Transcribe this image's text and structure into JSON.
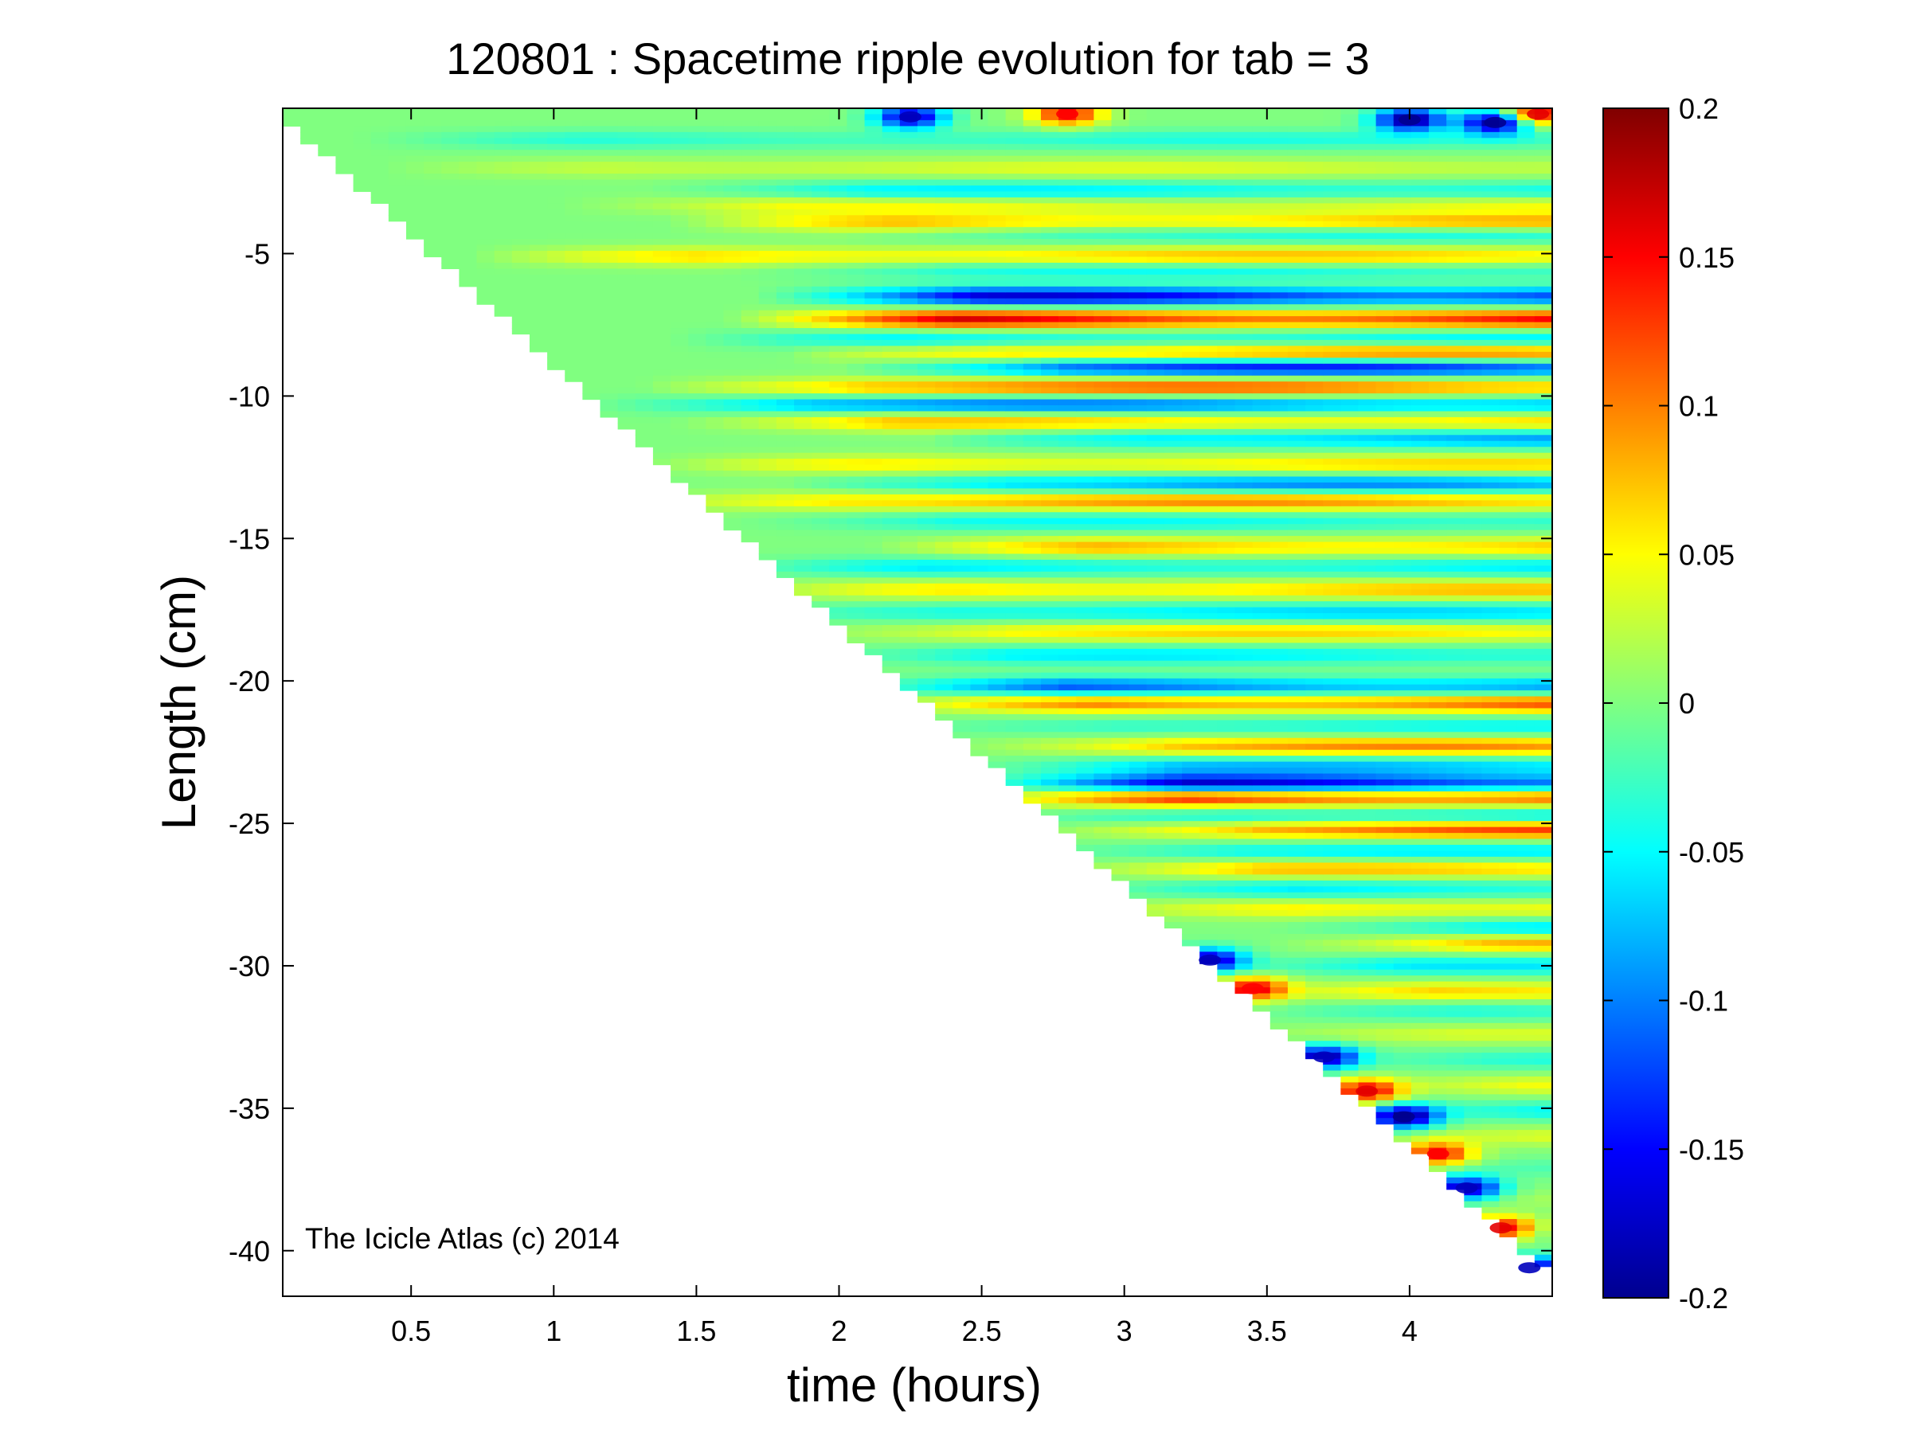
{
  "figure": {
    "title": "120801 : Spacetime ripple evolution for tab = 3",
    "watermark": "The Icicle Atlas (c) 2014"
  },
  "chart_data": {
    "type": "heatmap",
    "title": "120801 : Spacetime ripple evolution for tab = 3",
    "xlabel": "time (hours)",
    "ylabel": "Length (cm)",
    "xlim": [
      0.05,
      4.5
    ],
    "ylim": [
      -41.6,
      0.1
    ],
    "xticks": [
      0.5,
      1,
      1.5,
      2,
      2.5,
      3,
      3.5,
      4
    ],
    "xtick_labels": [
      "0.5",
      "1",
      "1.5",
      "2",
      "2.5",
      "3",
      "3.5",
      "4"
    ],
    "yticks": [
      -5,
      -10,
      -15,
      -20,
      -25,
      -30,
      -35,
      -40
    ],
    "ytick_labels": [
      "-5",
      "-10",
      "-15",
      "-20",
      "-25",
      "-30",
      "-35",
      "-40"
    ],
    "grid": false,
    "colormap": "jet",
    "colorbar": {
      "clim": [
        -0.2,
        0.2
      ],
      "ticks": [
        0.2,
        0.15,
        0.1,
        0.05,
        0,
        -0.05,
        -0.1,
        -0.15,
        -0.2
      ],
      "tick_labels": [
        "0.2",
        "0.15",
        "0.1",
        "0.05",
        "0",
        "-0.05",
        "-0.1",
        "-0.15",
        "-0.2"
      ],
      "colors": [
        "#00008F",
        "#0000FF",
        "#0080FF",
        "#00FFFF",
        "#80FF80",
        "#FFFF00",
        "#FF8000",
        "#FF0000",
        "#800000"
      ]
    },
    "data_region": {
      "description_points": [
        [
          0.05,
          0
        ],
        [
          4.5,
          0
        ],
        [
          4.5,
          -41.2
        ],
        [
          0.05,
          0
        ]
      ],
      "front_start": [
        0.05,
        -0.5
      ],
      "front_end": [
        4.5,
        -41.2
      ]
    },
    "bands": [
      {
        "y": -1.0,
        "amp": -0.04,
        "start": 0.5
      },
      {
        "y": -2.0,
        "amp": 0.04,
        "start": 0.6
      },
      {
        "y": -2.8,
        "amp": -0.06,
        "start": 1.5
      },
      {
        "y": -3.3,
        "amp": 0.05,
        "start": 1.2
      },
      {
        "y": -3.9,
        "amp": 0.09,
        "start": 1.6
      },
      {
        "y": -4.3,
        "amp": -0.05,
        "start": 2.2
      },
      {
        "y": -5.1,
        "amp": 0.08,
        "start": 0.9
      },
      {
        "y": -5.6,
        "amp": -0.05,
        "start": 1.8
      },
      {
        "y": -6.5,
        "amp": -0.17,
        "start": 1.9
      },
      {
        "y": -7.3,
        "amp": 0.17,
        "start": 1.8
      },
      {
        "y": -8.0,
        "amp": -0.06,
        "start": 1.6
      },
      {
        "y": -8.5,
        "amp": 0.11,
        "start": 2.0
      },
      {
        "y": -9.0,
        "amp": -0.15,
        "start": 2.2
      },
      {
        "y": -9.7,
        "amp": 0.12,
        "start": 1.5
      },
      {
        "y": -10.3,
        "amp": -0.11,
        "start": 1.3
      },
      {
        "y": -10.9,
        "amp": 0.08,
        "start": 1.6
      },
      {
        "y": -11.5,
        "amp": -0.09,
        "start": 2.5
      },
      {
        "y": -12.4,
        "amp": 0.07,
        "start": 1.5
      },
      {
        "y": -13.1,
        "amp": -0.1,
        "start": 2.0
      },
      {
        "y": -13.7,
        "amp": 0.1,
        "start": 1.4
      },
      {
        "y": -14.4,
        "amp": -0.05,
        "start": 1.8
      },
      {
        "y": -15.3,
        "amp": 0.09,
        "start": 2.3
      },
      {
        "y": -16.0,
        "amp": -0.06,
        "start": 1.7
      },
      {
        "y": -16.8,
        "amp": 0.08,
        "start": 1.8
      },
      {
        "y": -17.6,
        "amp": -0.07,
        "start": 1.8
      },
      {
        "y": -18.3,
        "amp": 0.07,
        "start": 2.0
      },
      {
        "y": -19.1,
        "amp": -0.06,
        "start": 2.0
      },
      {
        "y": -20.2,
        "amp": -0.12,
        "start": 2.2
      },
      {
        "y": -20.8,
        "amp": 0.13,
        "start": 2.3
      },
      {
        "y": -21.6,
        "amp": -0.05,
        "start": 2.4
      },
      {
        "y": -22.3,
        "amp": 0.1,
        "start": 2.6
      },
      {
        "y": -23.0,
        "amp": -0.08,
        "start": 2.6
      },
      {
        "y": -23.6,
        "amp": -0.18,
        "start": 2.62
      },
      {
        "y": -24.1,
        "amp": 0.16,
        "start": 2.62
      },
      {
        "y": -24.8,
        "amp": -0.08,
        "start": 2.8
      },
      {
        "y": -25.2,
        "amp": 0.14,
        "start": 2.9
      },
      {
        "y": -26.0,
        "amp": -0.06,
        "start": 2.8
      },
      {
        "y": -26.6,
        "amp": 0.08,
        "start": 2.9
      },
      {
        "y": -27.3,
        "amp": -0.06,
        "start": 3.0
      },
      {
        "y": -28.0,
        "amp": 0.07,
        "start": 3.0
      },
      {
        "y": -28.7,
        "amp": -0.08,
        "start": 3.7
      },
      {
        "y": -29.2,
        "amp": 0.09,
        "start": 3.7
      },
      {
        "y": -30.0,
        "amp": -0.06,
        "start": 3.4
      },
      {
        "y": -30.9,
        "amp": 0.07,
        "start": 3.5
      },
      {
        "y": -31.6,
        "amp": -0.05,
        "start": 3.6
      },
      {
        "y": -32.4,
        "amp": 0.06,
        "start": 3.6
      },
      {
        "y": -33.3,
        "amp": -0.05,
        "start": 3.7
      },
      {
        "y": -34.2,
        "amp": 0.05,
        "start": 3.8
      },
      {
        "y": -35.1,
        "amp": -0.05,
        "start": 3.9
      },
      {
        "y": -36.0,
        "amp": 0.05,
        "start": 4.0
      },
      {
        "y": -37.1,
        "amp": -0.04,
        "start": 4.1
      },
      {
        "y": -38.2,
        "amp": 0.04,
        "start": 4.2
      },
      {
        "y": -39.4,
        "amp": -0.04,
        "start": 4.3
      }
    ],
    "hotspots": [
      {
        "x": 2.25,
        "y": -0.2,
        "amp": -0.18
      },
      {
        "x": 2.8,
        "y": -0.1,
        "amp": 0.15
      },
      {
        "x": 4.0,
        "y": -0.3,
        "amp": -0.2
      },
      {
        "x": 4.3,
        "y": -0.4,
        "amp": -0.2
      },
      {
        "x": 4.45,
        "y": -0.1,
        "amp": 0.16
      },
      {
        "x": 3.3,
        "y": -29.8,
        "amp": -0.18
      },
      {
        "x": 3.45,
        "y": -30.8,
        "amp": 0.15
      },
      {
        "x": 3.7,
        "y": -33.2,
        "amp": -0.18
      },
      {
        "x": 3.85,
        "y": -34.4,
        "amp": 0.16
      },
      {
        "x": 3.98,
        "y": -35.3,
        "amp": -0.2
      },
      {
        "x": 4.1,
        "y": -36.6,
        "amp": 0.15
      },
      {
        "x": 4.2,
        "y": -37.8,
        "amp": -0.18
      },
      {
        "x": 4.32,
        "y": -39.2,
        "amp": 0.16
      },
      {
        "x": 4.42,
        "y": -40.6,
        "amp": -0.18
      }
    ]
  }
}
